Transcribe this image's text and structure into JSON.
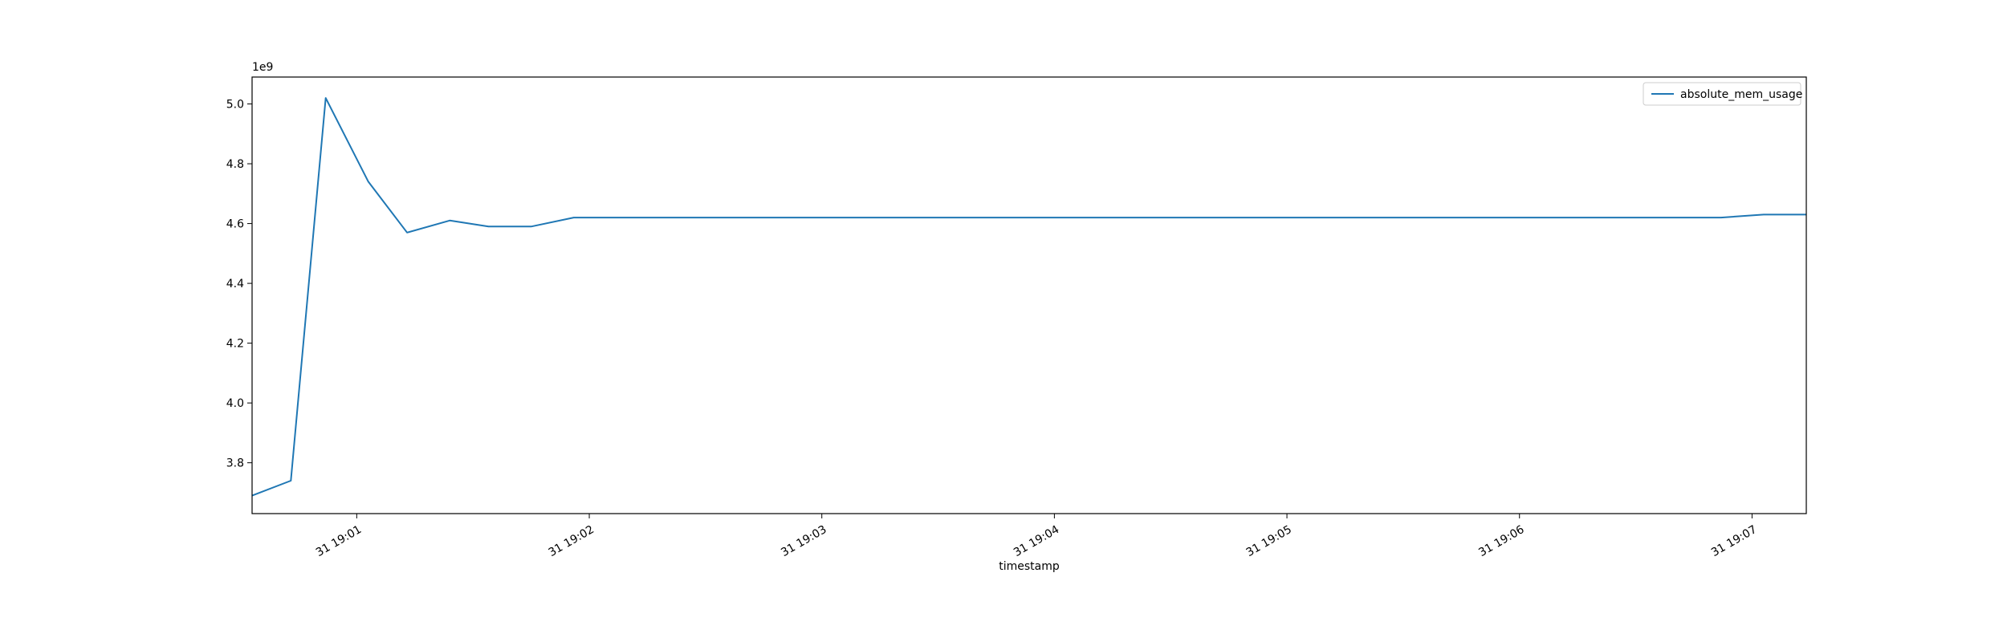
{
  "chart_data": {
    "type": "line",
    "title": "",
    "xlabel": "timestamp",
    "ylabel": "",
    "y_offset_label": "1e9",
    "xlim": [
      "19:00:33",
      "19:07:14"
    ],
    "ylim": [
      3.63,
      5.09
    ],
    "x_ticks": [
      "19:01:00",
      "19:02:00",
      "19:03:00",
      "19:04:00",
      "19:05:00",
      "19:06:00",
      "19:07:00"
    ],
    "x_tick_labels": [
      "31 19:01",
      "31 19:02",
      "31 19:03",
      "31 19:04",
      "31 19:05",
      "31 19:06",
      "31 19:07"
    ],
    "y_ticks": [
      3.8,
      4.0,
      4.2,
      4.4,
      4.6,
      4.8,
      5.0
    ],
    "y_tick_labels": [
      "3.8",
      "4.0",
      "4.2",
      "4.4",
      "4.6",
      "4.8",
      "5.0"
    ],
    "grid": false,
    "legend_position": "top-right",
    "series": [
      {
        "name": "absolute_mem_usage",
        "color": "#1f77b4",
        "x": [
          "19:00:33",
          "19:00:43",
          "19:00:52",
          "19:01:03",
          "19:01:13",
          "19:01:24",
          "19:01:34",
          "19:01:45",
          "19:01:56",
          "19:02:30",
          "19:03:30",
          "19:04:30",
          "19:05:30",
          "19:06:30",
          "19:06:52",
          "19:07:03",
          "19:07:14"
        ],
        "values": [
          3.69,
          3.74,
          5.02,
          4.74,
          4.57,
          4.61,
          4.59,
          4.59,
          4.62,
          4.62,
          4.62,
          4.62,
          4.62,
          4.62,
          4.62,
          4.63,
          4.63
        ]
      }
    ]
  }
}
